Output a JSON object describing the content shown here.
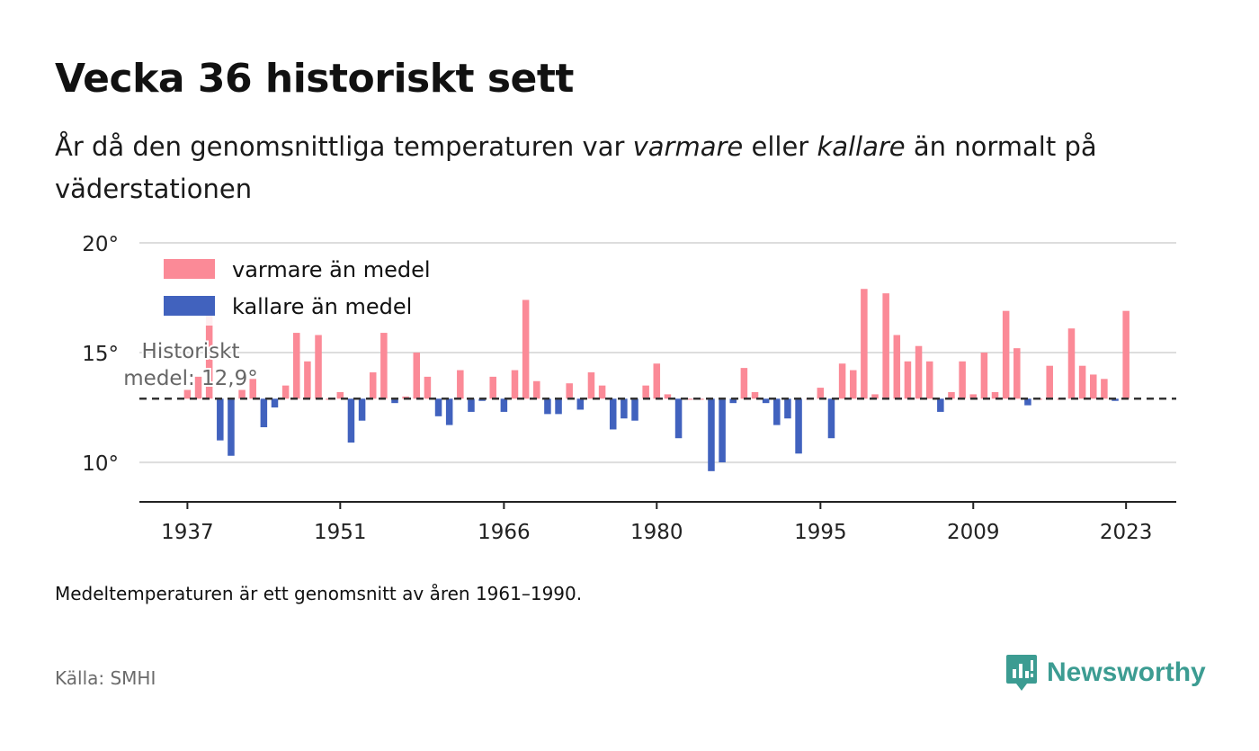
{
  "header": {
    "title": "Vecka 36 historiskt sett",
    "subtitle_part1": "År då den genomsnittliga temperaturen var ",
    "subtitle_warm": "varmare",
    "subtitle_part2": " eller ",
    "subtitle_cold": "kallare",
    "subtitle_part3": " än normalt på väderstationen"
  },
  "footer": {
    "note": "Medeltemperaturen är ett genomsnitt av åren 1961–1990.",
    "source": "Källa: SMHI",
    "brand": "Newsworthy"
  },
  "colors": {
    "warm": "#fb8a97",
    "cold": "#4162be",
    "brand": "#3c9c92"
  },
  "chart_data": {
    "type": "bar",
    "baseline": 12.9,
    "baseline_label": "Historiskt medel: 12,9°",
    "ylim": [
      8.2,
      20
    ],
    "yticks": [
      10,
      15,
      20
    ],
    "ytick_labels": [
      "10°",
      "15°",
      "20°"
    ],
    "xticks": [
      1937,
      1951,
      1966,
      1980,
      1995,
      2009,
      2023
    ],
    "xlim": [
      1932.6,
      2027.6
    ],
    "grid": true,
    "legend": [
      {
        "name": "varmare än medel",
        "color": "#fb8a97"
      },
      {
        "name": "kallare än medel",
        "color": "#4162be"
      }
    ],
    "years": [
      1937,
      1938,
      1939,
      1940,
      1941,
      1942,
      1943,
      1944,
      1945,
      1946,
      1947,
      1948,
      1949,
      1950,
      1951,
      1952,
      1953,
      1954,
      1955,
      1956,
      1957,
      1958,
      1959,
      1960,
      1961,
      1962,
      1963,
      1964,
      1965,
      1966,
      1967,
      1968,
      1969,
      1970,
      1971,
      1972,
      1973,
      1974,
      1975,
      1976,
      1977,
      1978,
      1979,
      1980,
      1981,
      1982,
      1983,
      1984,
      1985,
      1986,
      1987,
      1988,
      1989,
      1990,
      1991,
      1992,
      1993,
      1994,
      1995,
      1996,
      1997,
      1998,
      1999,
      2000,
      2001,
      2002,
      2003,
      2004,
      2005,
      2006,
      2007,
      2008,
      2009,
      2010,
      2011,
      2012,
      2013,
      2014,
      2015,
      2016,
      2017,
      2018,
      2019,
      2020,
      2021,
      2022,
      2023
    ],
    "values": [
      13.3,
      13.9,
      16.7,
      11.0,
      10.3,
      13.3,
      13.8,
      11.6,
      12.5,
      13.5,
      15.9,
      14.6,
      15.8,
      12.9,
      13.2,
      10.9,
      11.9,
      14.1,
      15.9,
      12.7,
      13.0,
      15.0,
      13.9,
      12.1,
      11.7,
      14.2,
      12.3,
      12.8,
      13.9,
      12.3,
      14.2,
      17.4,
      13.7,
      12.2,
      12.2,
      13.6,
      12.4,
      14.1,
      13.5,
      11.5,
      12.0,
      11.9,
      13.5,
      14.5,
      13.1,
      11.1,
      12.9,
      12.9,
      9.6,
      10.0,
      12.7,
      14.3,
      13.2,
      12.7,
      11.7,
      12.0,
      10.4,
      12.9,
      13.4,
      11.1,
      14.5,
      14.2,
      17.9,
      13.1,
      17.7,
      15.8,
      14.6,
      15.3,
      14.6,
      12.3,
      13.2,
      14.6,
      13.1,
      15.0,
      13.2,
      16.9,
      15.2,
      12.6,
      12.9,
      14.4,
      12.9,
      16.1,
      14.4,
      14.0,
      13.8,
      12.8,
      16.9
    ]
  }
}
